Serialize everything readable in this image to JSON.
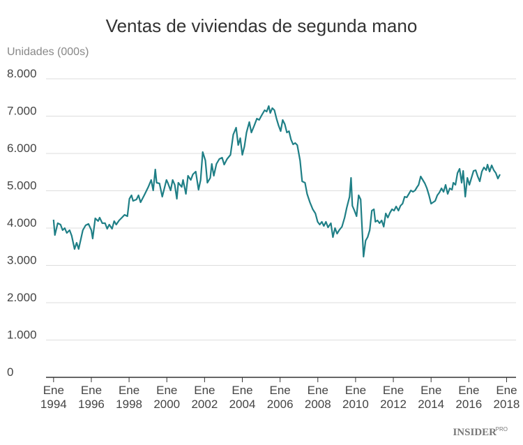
{
  "chart_data": {
    "type": "line",
    "title": "Ventas de viviendas de segunda mano",
    "subtitle": "Unidades (000s)",
    "logo": "INSIDER",
    "logo_badge": "PRO",
    "xlim": [
      1993.6,
      2018.5
    ],
    "ylim": [
      0,
      8000
    ],
    "xticks": [
      {
        "value": 1994,
        "label": "Ene 1994"
      },
      {
        "value": 1996,
        "label": "Ene 1996"
      },
      {
        "value": 1998,
        "label": "Ene 1998"
      },
      {
        "value": 2000,
        "label": "Ene 2000"
      },
      {
        "value": 2002,
        "label": "Ene 2002"
      },
      {
        "value": 2004,
        "label": "Ene 2004"
      },
      {
        "value": 2006,
        "label": "Ene 2006"
      },
      {
        "value": 2008,
        "label": "Ene 2008"
      },
      {
        "value": 2010,
        "label": "Ene 2010"
      },
      {
        "value": 2012,
        "label": "Ene 2012"
      },
      {
        "value": 2014,
        "label": "Ene 2014"
      },
      {
        "value": 2016,
        "label": "Ene 2016"
      },
      {
        "value": 2018,
        "label": "Ene 2018"
      }
    ],
    "yticks": [
      0,
      {
        "value": 1000,
        "label": "1.000"
      },
      {
        "value": 2000,
        "label": "2.000"
      },
      {
        "value": 3000,
        "label": "3.000"
      },
      {
        "value": 4000,
        "label": "4.000"
      },
      {
        "value": 5000,
        "label": "5.000"
      },
      {
        "value": 6000,
        "label": "6.000"
      },
      {
        "value": 7000,
        "label": "7.000"
      },
      {
        "value": 8000,
        "label": "8.000"
      }
    ],
    "grid": true,
    "color": "#1f7f86",
    "x": [
      1994.0,
      1994.07,
      1994.22,
      1994.37,
      1994.48,
      1994.59,
      1994.7,
      1994.85,
      1994.96,
      1995.11,
      1995.22,
      1995.33,
      1995.55,
      1995.7,
      1995.85,
      1996.0,
      1996.07,
      1996.21,
      1996.36,
      1996.44,
      1996.58,
      1996.73,
      1996.84,
      1996.95,
      1997.1,
      1997.21,
      1997.32,
      1997.47,
      1997.62,
      1997.76,
      1997.91,
      1998.02,
      1998.13,
      1998.21,
      1998.39,
      1998.5,
      1998.61,
      1998.8,
      1999.02,
      1999.17,
      1999.28,
      1999.39,
      1999.46,
      1999.61,
      1999.76,
      1999.98,
      2000.05,
      2000.2,
      2000.31,
      2000.42,
      2000.53,
      2000.61,
      2000.79,
      2000.86,
      2001.01,
      2001.12,
      2001.27,
      2001.38,
      2001.53,
      2001.68,
      2001.79,
      2001.9,
      2002.04,
      2002.15,
      2002.3,
      2002.38,
      2002.49,
      2002.63,
      2002.78,
      2002.93,
      2003.04,
      2003.19,
      2003.37,
      2003.52,
      2003.67,
      2003.78,
      2003.89,
      2004.0,
      2004.11,
      2004.22,
      2004.37,
      2004.48,
      2004.63,
      2004.77,
      2004.89,
      2005.03,
      2005.18,
      2005.29,
      2005.4,
      2005.48,
      2005.59,
      2005.7,
      2005.81,
      2005.92,
      2006.03,
      2006.14,
      2006.25,
      2006.36,
      2006.47,
      2006.58,
      2006.69,
      2006.8,
      2006.91,
      2007.06,
      2007.17,
      2007.32,
      2007.43,
      2007.58,
      2007.73,
      2007.87,
      2007.99,
      2008.1,
      2008.21,
      2008.32,
      2008.43,
      2008.54,
      2008.69,
      2008.8,
      2008.91,
      2009.02,
      2009.13,
      2009.28,
      2009.42,
      2009.53,
      2009.68,
      2009.76,
      2009.83,
      2009.94,
      2010.05,
      2010.16,
      2010.27,
      2010.35,
      2010.42,
      2010.53,
      2010.64,
      2010.75,
      2010.86,
      2010.97,
      2011.05,
      2011.16,
      2011.27,
      2011.38,
      2011.49,
      2011.6,
      2011.71,
      2011.82,
      2011.93,
      2012.04,
      2012.15,
      2012.27,
      2012.38,
      2012.49,
      2012.6,
      2012.71,
      2012.82,
      2012.93,
      2013.04,
      2013.15,
      2013.26,
      2013.34,
      2013.45,
      2013.56,
      2013.67,
      2013.78,
      2013.89,
      2014.0,
      2014.11,
      2014.22,
      2014.33,
      2014.44,
      2014.55,
      2014.66,
      2014.77,
      2014.88,
      2014.99,
      2015.11,
      2015.18,
      2015.29,
      2015.4,
      2015.51,
      2015.62,
      2015.7,
      2015.81,
      2015.92,
      2016.03,
      2016.14,
      2016.25,
      2016.36,
      2016.47,
      2016.58,
      2016.69,
      2016.8,
      2016.92,
      2016.99,
      2017.1,
      2017.21,
      2017.32,
      2017.43,
      2017.54,
      2017.65
    ],
    "values": [
      4224,
      3813,
      4131,
      4093,
      3944,
      4000,
      3869,
      3944,
      3794,
      3439,
      3607,
      3439,
      3944,
      4075,
      4112,
      3944,
      3720,
      4262,
      4187,
      4280,
      4131,
      4131,
      3981,
      4093,
      3981,
      4187,
      4093,
      4206,
      4280,
      4355,
      4318,
      4785,
      4879,
      4729,
      4766,
      4879,
      4692,
      4879,
      5103,
      5290,
      5009,
      5570,
      5215,
      5196,
      4841,
      5290,
      5215,
      5009,
      5290,
      5159,
      4785,
      5215,
      5103,
      5290,
      4916,
      5402,
      5290,
      5439,
      5514,
      5028,
      5290,
      6037,
      5813,
      5215,
      5346,
      5720,
      5402,
      5720,
      5850,
      5888,
      5701,
      5850,
      5963,
      6505,
      6692,
      6224,
      6411,
      5963,
      6187,
      6561,
      6841,
      6561,
      6748,
      6935,
      6897,
      7028,
      7159,
      7121,
      7271,
      7084,
      7215,
      7159,
      6935,
      6748,
      6598,
      6897,
      6785,
      6561,
      6598,
      6374,
      6243,
      6280,
      6224,
      5813,
      5252,
      5215,
      4916,
      4692,
      4505,
      4393,
      4168,
      4093,
      4168,
      4056,
      4168,
      4019,
      4131,
      3757,
      4000,
      3850,
      3944,
      4037,
      4280,
      4542,
      4841,
      5346,
      4598,
      4467,
      4318,
      4879,
      4766,
      3944,
      3234,
      3664,
      3757,
      3944,
      4467,
      4505,
      4168,
      4206,
      4131,
      4206,
      4037,
      4393,
      4280,
      4411,
      4505,
      4467,
      4579,
      4467,
      4598,
      4654,
      4841,
      4822,
      4916,
      5009,
      4972,
      5009,
      5103,
      5159,
      5383,
      5290,
      5196,
      5065,
      4879,
      4654,
      4692,
      4729,
      4879,
      4953,
      5065,
      4972,
      5159,
      4916,
      5065,
      5028,
      5215,
      5159,
      5477,
      5589,
      5215,
      5533,
      4841,
      5346,
      5159,
      5346,
      5533,
      5551,
      5383,
      5252,
      5514,
      5626,
      5551,
      5701,
      5514,
      5682,
      5551,
      5477,
      5327,
      5439
    ]
  }
}
